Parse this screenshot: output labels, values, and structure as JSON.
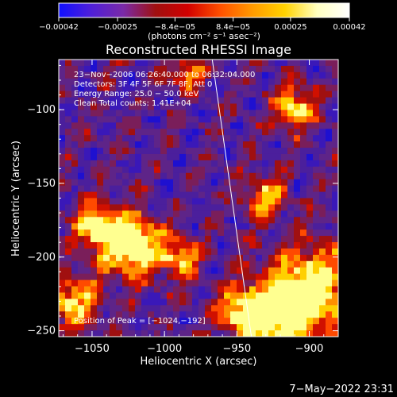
{
  "chart_data": {
    "type": "heatmap",
    "title": "Reconstructed RHESSI Image",
    "xlabel": "Heliocentric X (arcsec)",
    "ylabel": "Heliocentric Y (arcsec)",
    "xlim": [
      -1073,
      -880
    ],
    "ylim": [
      -254,
      -66
    ],
    "x_ticks": [
      -1050,
      -1000,
      -950,
      -900
    ],
    "x_tick_labels": [
      "−1050",
      "−1000",
      "−950",
      "−900"
    ],
    "y_ticks": [
      -100,
      -150,
      -200,
      -250
    ],
    "y_tick_labels": [
      "−100",
      "−150",
      "−200",
      "−250"
    ],
    "colorbar": {
      "range": [
        -0.00042,
        0.00042
      ],
      "ticks": [
        -0.00042,
        -0.00025,
        -8.4e-05,
        8.4e-05,
        0.00025,
        0.00042
      ],
      "tick_labels": [
        "−0.00042",
        "−0.00025",
        "−8.4e−05",
        "8.4e−05",
        "0.00025",
        "0.00042"
      ],
      "label": "(photons cm⁻² s⁻¹ asec⁻²)",
      "colors": [
        "#1010ff",
        "#4f1fd8",
        "#7a2aa8",
        "#a01010",
        "#d20000",
        "#ff5000",
        "#ff9a00",
        "#ffd200",
        "#ffffc0",
        "#ffffff"
      ]
    },
    "annotations": [
      "23−Nov−2006 06:26:40.000 to 06:32:04.000",
      "Detectors: 3F 4F 5F 6F 7F 8F, Att 0",
      "Energy Range: 25.0 − 50.0 keV",
      "Clean    Total counts: 1.41E+04"
    ],
    "peak_label": "Position of Peak = [−1024,−192]",
    "peak": [
      -1024,
      -192
    ],
    "limb_line": {
      "x_top": -967,
      "x_bottom": -940
    },
    "bright_regions": [
      {
        "x": -1024,
        "y": -192,
        "radius": 14,
        "level": 1.0
      },
      {
        "x": -1048,
        "y": -178,
        "radius": 10,
        "level": 0.75
      },
      {
        "x": -898,
        "y": -222,
        "radius": 20,
        "level": 0.85
      },
      {
        "x": -945,
        "y": -237,
        "radius": 12,
        "level": 0.8
      },
      {
        "x": -910,
        "y": -98,
        "radius": 10,
        "level": 0.7
      },
      {
        "x": -920,
        "y": -240,
        "radius": 14,
        "level": 0.75
      },
      {
        "x": -1063,
        "y": -230,
        "radius": 12,
        "level": 0.7
      },
      {
        "x": -990,
        "y": -200,
        "radius": 10,
        "level": 0.6
      },
      {
        "x": -985,
        "y": -75,
        "radius": 8,
        "level": 0.55
      },
      {
        "x": -930,
        "y": -160,
        "radius": 10,
        "level": 0.6
      }
    ]
  },
  "footer_date": "7−May−2022 23:31"
}
